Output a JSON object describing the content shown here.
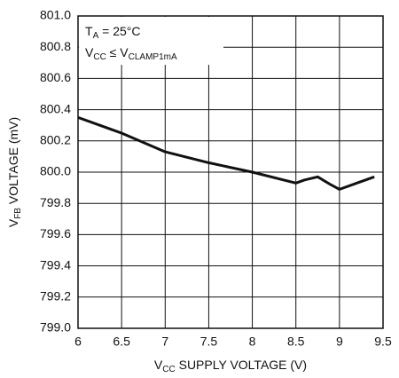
{
  "chart_data": {
    "type": "line",
    "x_label": [
      "V",
      "CC",
      " SUPPLY VOLTAGE (V)"
    ],
    "y_label": [
      "V",
      "FB",
      " VOLTAGE (mV)"
    ],
    "annotations": [
      [
        "T",
        "A",
        " = 25°C"
      ],
      [
        "V",
        "CC",
        " ≤ V",
        "CLAMP1mA"
      ]
    ],
    "x": [
      6,
      6.25,
      6.5,
      7,
      7.5,
      8,
      8.5,
      8.6,
      8.75,
      8.9,
      9,
      9.2,
      9.4
    ],
    "series": [
      {
        "name": "VFB",
        "color": "#111111",
        "values": [
          800.35,
          800.3,
          800.25,
          800.13,
          800.06,
          800.0,
          799.93,
          799.95,
          799.97,
          799.92,
          799.89,
          799.93,
          799.97
        ]
      }
    ],
    "xlim": [
      6,
      9.5
    ],
    "xticks": [
      6,
      6.5,
      7,
      7.5,
      8,
      8.5,
      9,
      9.5
    ],
    "ylim": [
      799,
      801
    ],
    "yticks": [
      {
        "value": 799,
        "label": "799.0"
      },
      {
        "value": 799.2,
        "label": "799.2"
      },
      {
        "value": 799.4,
        "label": "799.4"
      },
      {
        "value": 799.6,
        "label": "799.6"
      },
      {
        "value": 799.8,
        "label": "799.8"
      },
      {
        "value": 800,
        "label": "800.0"
      },
      {
        "value": 800.2,
        "label": "800.2"
      },
      {
        "value": 800.4,
        "label": "800.4"
      },
      {
        "value": 800.6,
        "label": "800.6"
      },
      {
        "value": 800.8,
        "label": "800.8"
      },
      {
        "value": 801,
        "label": "801.0"
      }
    ],
    "grid": true
  }
}
